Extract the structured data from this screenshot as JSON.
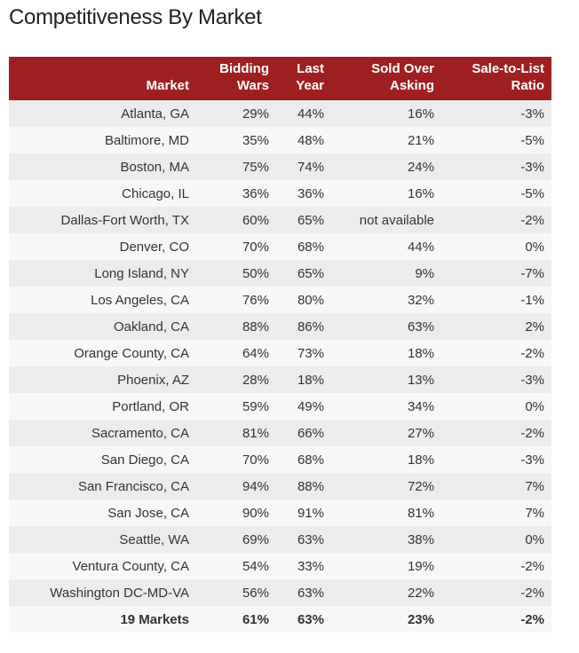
{
  "title": "Competitiveness By Market",
  "colors": {
    "header_bg": "#9e1f20",
    "row_odd": "#ececec",
    "row_even": "#f7f7f7"
  },
  "columns": [
    {
      "line1": "",
      "line2": "Market"
    },
    {
      "line1": "Bidding",
      "line2": "Wars"
    },
    {
      "line1": "Last",
      "line2": "Year"
    },
    {
      "line1": "Sold Over",
      "line2": "Asking"
    },
    {
      "line1": "Sale-to-List",
      "line2": "Ratio"
    }
  ],
  "rows": [
    [
      "Atlanta, GA",
      "29%",
      "44%",
      "16%",
      "-3%"
    ],
    [
      "Baltimore, MD",
      "35%",
      "48%",
      "21%",
      "-5%"
    ],
    [
      "Boston, MA",
      "75%",
      "74%",
      "24%",
      "-3%"
    ],
    [
      "Chicago, IL",
      "36%",
      "36%",
      "16%",
      "-5%"
    ],
    [
      "Dallas-Fort Worth, TX",
      "60%",
      "65%",
      "not available",
      "-2%"
    ],
    [
      "Denver, CO",
      "70%",
      "68%",
      "44%",
      "0%"
    ],
    [
      "Long Island, NY",
      "50%",
      "65%",
      "9%",
      "-7%"
    ],
    [
      "Los Angeles, CA",
      "76%",
      "80%",
      "32%",
      "-1%"
    ],
    [
      "Oakland, CA",
      "88%",
      "86%",
      "63%",
      "2%"
    ],
    [
      "Orange County, CA",
      "64%",
      "73%",
      "18%",
      "-2%"
    ],
    [
      "Phoenix, AZ",
      "28%",
      "18%",
      "13%",
      "-3%"
    ],
    [
      "Portland, OR",
      "59%",
      "49%",
      "34%",
      "0%"
    ],
    [
      "Sacramento, CA",
      "81%",
      "66%",
      "27%",
      "-2%"
    ],
    [
      "San Diego, CA",
      "70%",
      "68%",
      "18%",
      "-3%"
    ],
    [
      "San Francisco, CA",
      "94%",
      "88%",
      "72%",
      "7%"
    ],
    [
      "San Jose, CA",
      "90%",
      "91%",
      "81%",
      "7%"
    ],
    [
      "Seattle, WA",
      "69%",
      "63%",
      "38%",
      "0%"
    ],
    [
      "Ventura County, CA",
      "54%",
      "33%",
      "19%",
      "-2%"
    ],
    [
      "Washington DC-MD-VA",
      "56%",
      "63%",
      "22%",
      "-2%"
    ]
  ],
  "total": [
    "19 Markets",
    "61%",
    "63%",
    "23%",
    "-2%"
  ]
}
